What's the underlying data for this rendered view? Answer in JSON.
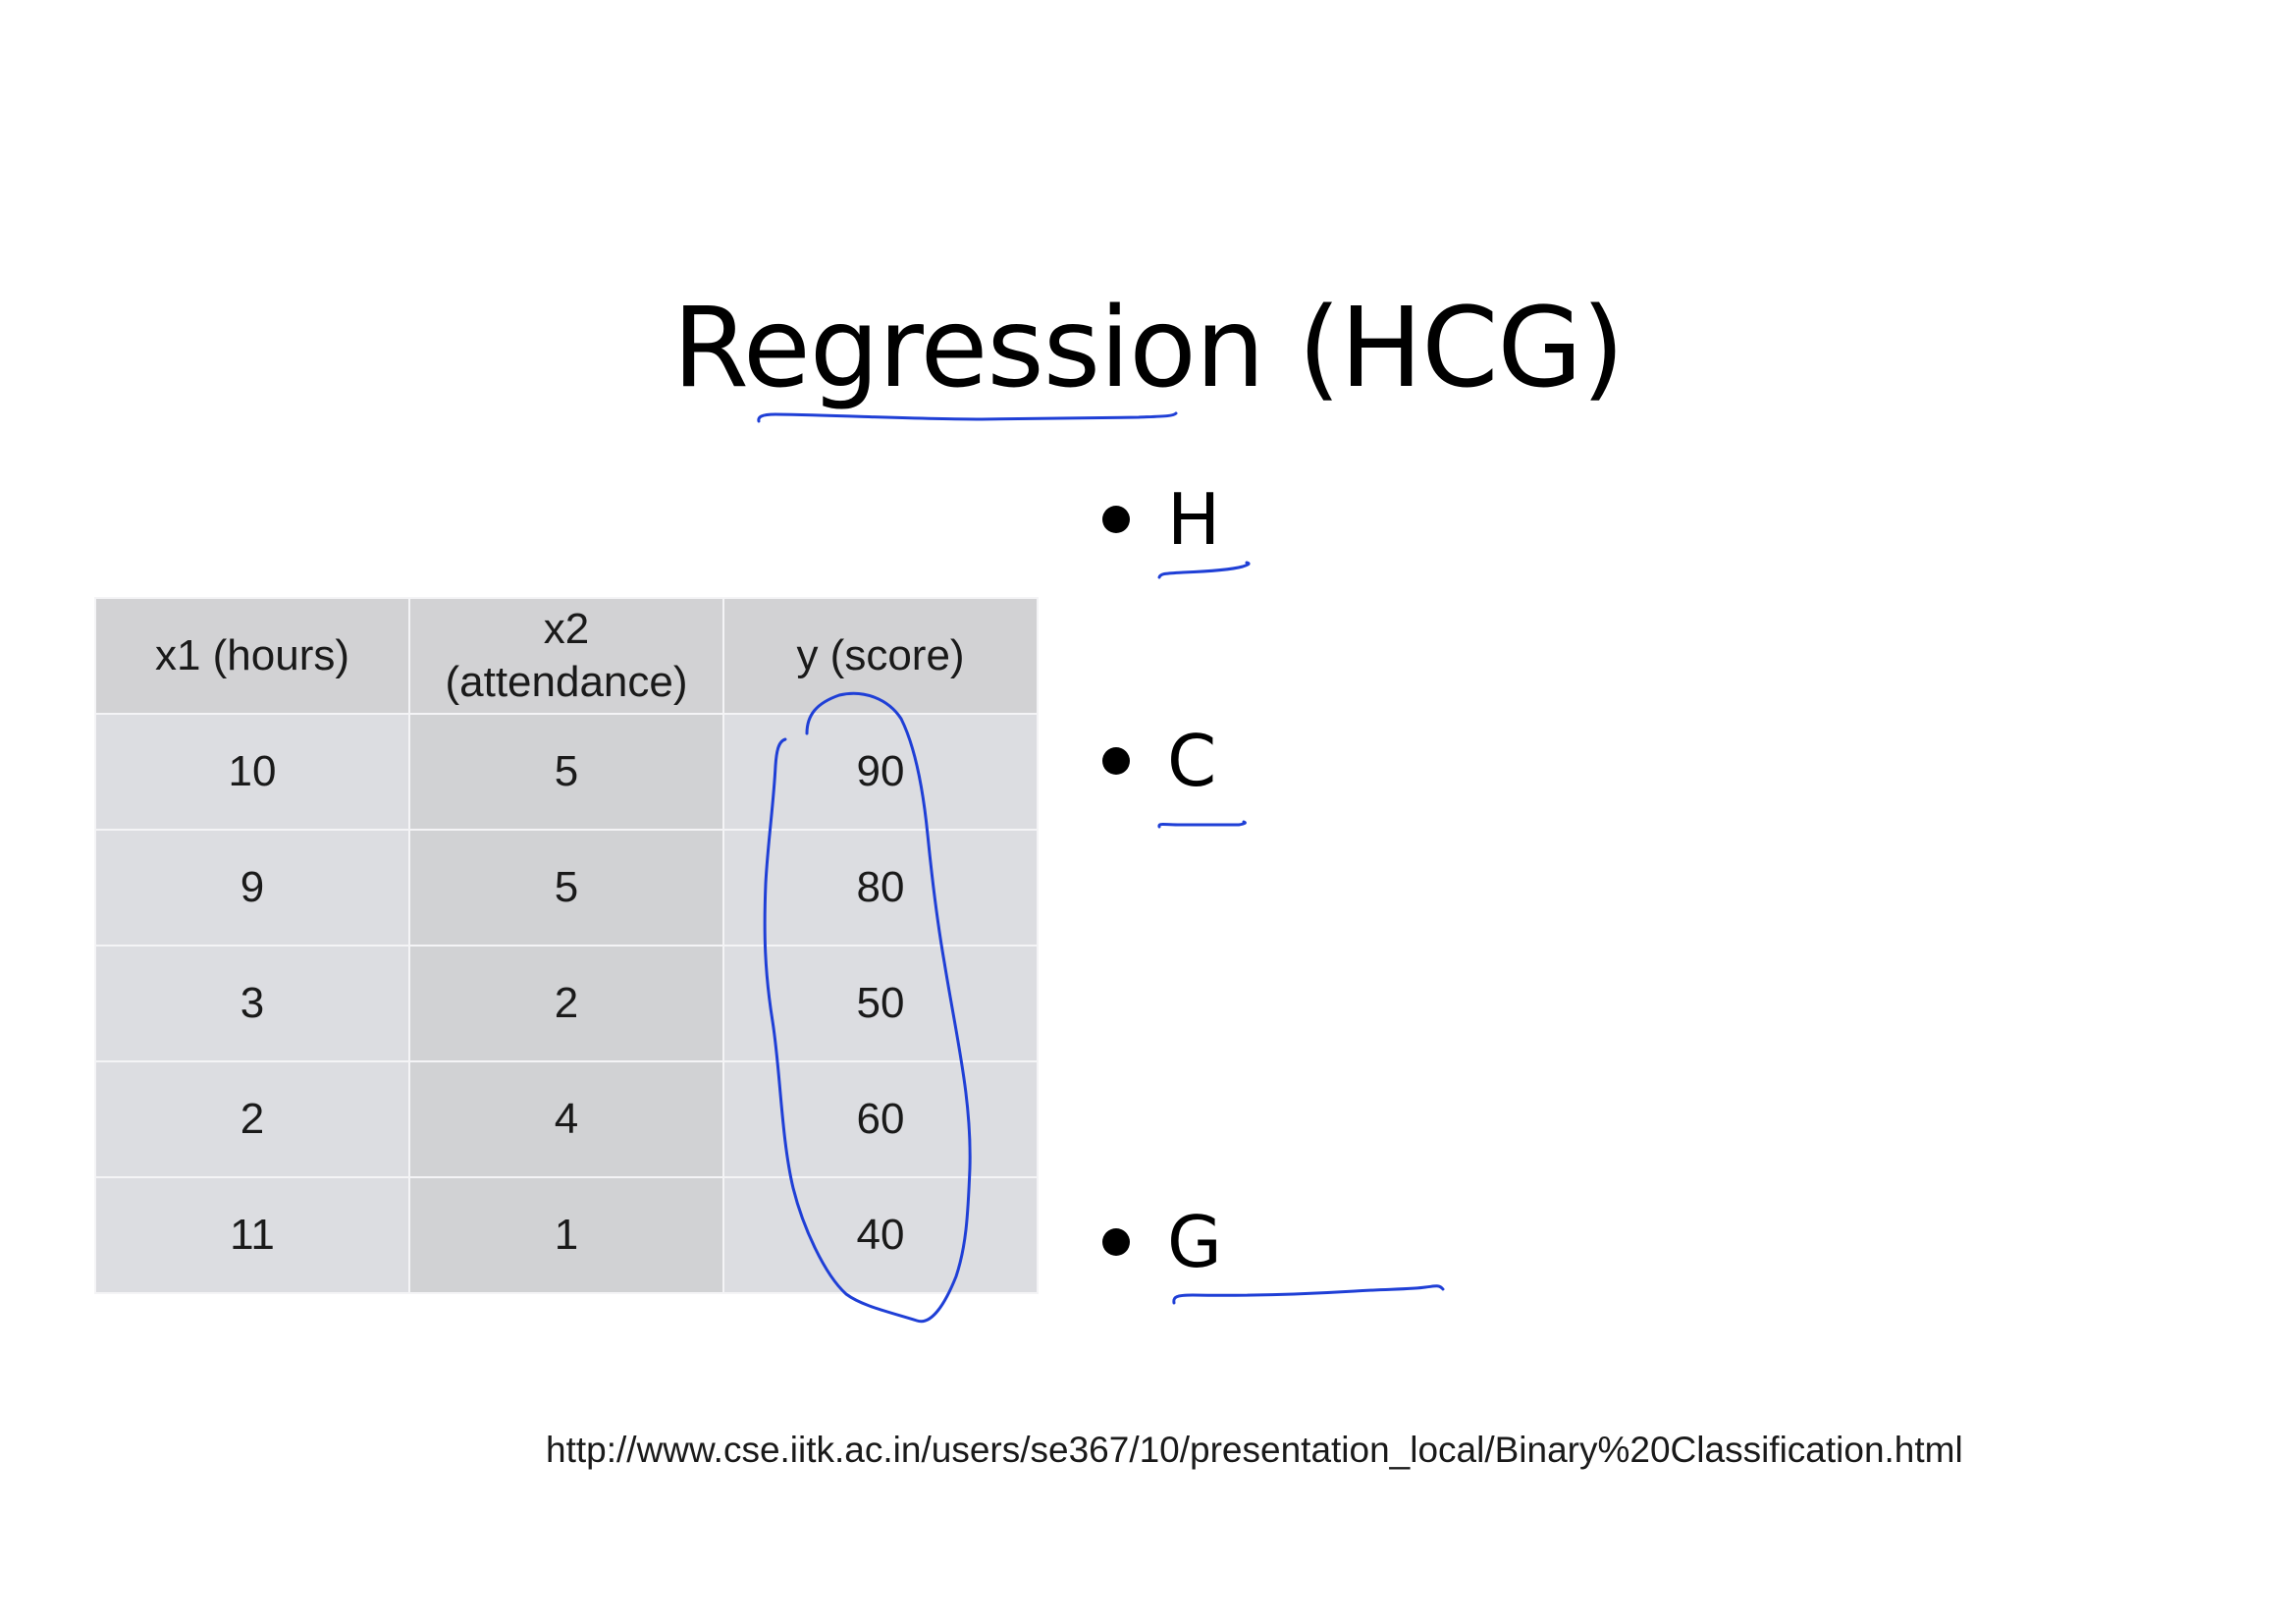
{
  "slide": {
    "title": "Regression (HCG)",
    "table": {
      "headers": [
        "x1 (hours)",
        "x2\n(attendance)",
        "y (score)"
      ],
      "rows": [
        [
          "10",
          "5",
          "90"
        ],
        [
          "9",
          "5",
          "80"
        ],
        [
          "3",
          "2",
          "50"
        ],
        [
          "2",
          "4",
          "60"
        ],
        [
          "11",
          "1",
          "40"
        ]
      ]
    },
    "bullets": [
      {
        "label": "H"
      },
      {
        "label": "C"
      },
      {
        "label": "G"
      }
    ],
    "source_url": "http://www.cse.iitk.ac.in/users/se367/10/presentation_local/Binary%20Classification.html"
  },
  "annotations": {
    "ink_color": "#1f3fd6"
  }
}
